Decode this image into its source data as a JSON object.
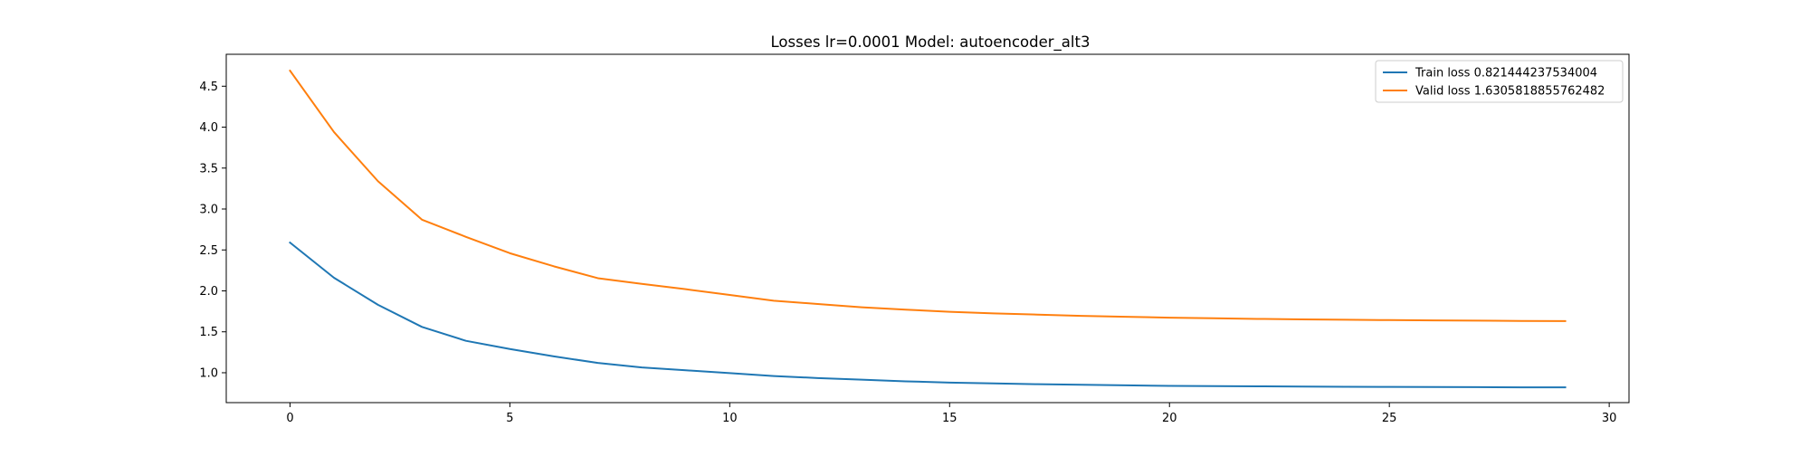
{
  "chart_data": {
    "type": "line",
    "title": "Losses lr=0.0001 Model: autoencoder_alt3",
    "xlabel": "",
    "ylabel": "",
    "xlim": [
      -1.45,
      30.45
    ],
    "ylim": [
      0.635,
      4.89
    ],
    "xticks": [
      0,
      5,
      10,
      15,
      20,
      25,
      30
    ],
    "xtick_labels": [
      "0",
      "5",
      "10",
      "15",
      "20",
      "25",
      "30"
    ],
    "yticks": [
      1.0,
      1.5,
      2.0,
      2.5,
      3.0,
      3.5,
      4.0,
      4.5
    ],
    "ytick_labels": [
      "1.0",
      "1.5",
      "2.0",
      "2.5",
      "3.0",
      "3.5",
      "4.0",
      "4.5"
    ],
    "grid": false,
    "legend_position": "top-right",
    "x": [
      0,
      1,
      2,
      3,
      4,
      5,
      6,
      7,
      8,
      9,
      10,
      11,
      12,
      13,
      14,
      15,
      16,
      17,
      18,
      19,
      20,
      21,
      22,
      23,
      24,
      25,
      26,
      27,
      28,
      29
    ],
    "series": [
      {
        "name": "Train loss 0.821444237534004",
        "color": "#1f77b4",
        "values": [
          2.59,
          2.16,
          1.83,
          1.56,
          1.39,
          1.29,
          1.2,
          1.12,
          1.065,
          1.03,
          0.995,
          0.96,
          0.935,
          0.915,
          0.895,
          0.88,
          0.87,
          0.86,
          0.853,
          0.846,
          0.84,
          0.837,
          0.834,
          0.831,
          0.829,
          0.827,
          0.825,
          0.824,
          0.822,
          0.821
        ]
      },
      {
        "name": "Valid loss 1.6305818855762482",
        "color": "#ff7f0e",
        "values": [
          4.69,
          3.94,
          3.34,
          2.87,
          2.66,
          2.46,
          2.3,
          2.155,
          2.085,
          2.02,
          1.95,
          1.88,
          1.84,
          1.8,
          1.77,
          1.745,
          1.725,
          1.71,
          1.695,
          1.683,
          1.673,
          1.665,
          1.658,
          1.652,
          1.647,
          1.643,
          1.639,
          1.636,
          1.633,
          1.631
        ]
      }
    ]
  }
}
